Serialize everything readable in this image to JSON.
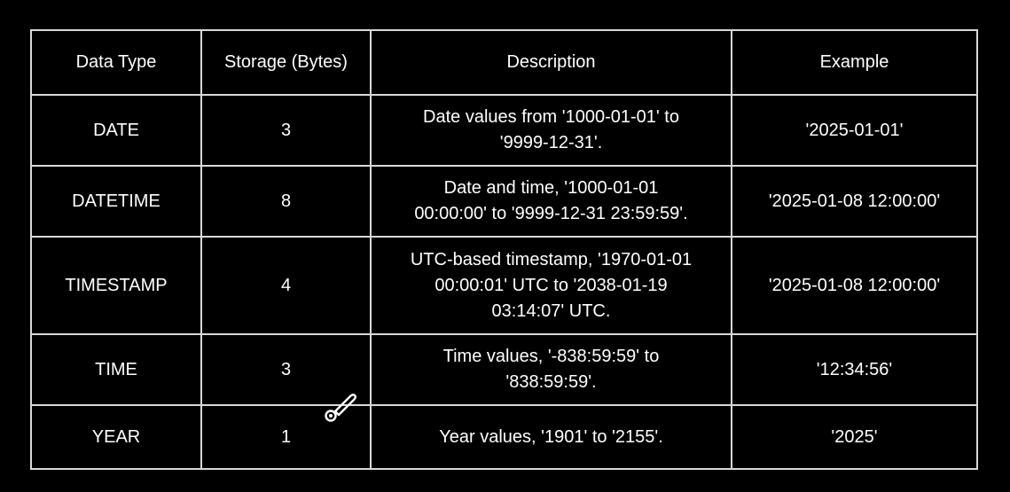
{
  "table": {
    "headers": [
      "Data Type",
      "Storage (Bytes)",
      "Description",
      "Example"
    ],
    "rows": [
      {
        "type": "DATE",
        "storage": "3",
        "description_lines": [
          "Date values from '1000-01-01' to",
          "'9999-12-31'."
        ],
        "example": "'2025-01-01'"
      },
      {
        "type": "DATETIME",
        "storage": "8",
        "description_lines": [
          "Date and time, '1000-01-01",
          "00:00:00' to '9999-12-31 23:59:59'."
        ],
        "example": "'2025-01-08 12:00:00'"
      },
      {
        "type": "TIMESTAMP",
        "storage": "4",
        "description_lines": [
          "UTC-based timestamp, '1970-01-01",
          "00:00:01' UTC to '2038-01-19",
          "03:14:07' UTC."
        ],
        "example": "'2025-01-08 12:00:00'"
      },
      {
        "type": "TIME",
        "storage": "3",
        "description_lines": [
          "Time values, '-838:59:59' to",
          "'838:59:59'."
        ],
        "example": "'12:34:56'"
      },
      {
        "type": "YEAR",
        "storage": "1",
        "description_lines": [
          "Year values, '1901' to '2155'."
        ],
        "example": "'2025'"
      }
    ]
  },
  "cursor": {
    "icon": "pen-cursor-icon"
  },
  "colors": {
    "background": "#000000",
    "text": "#ffffff",
    "border": "#d8d8d8"
  }
}
